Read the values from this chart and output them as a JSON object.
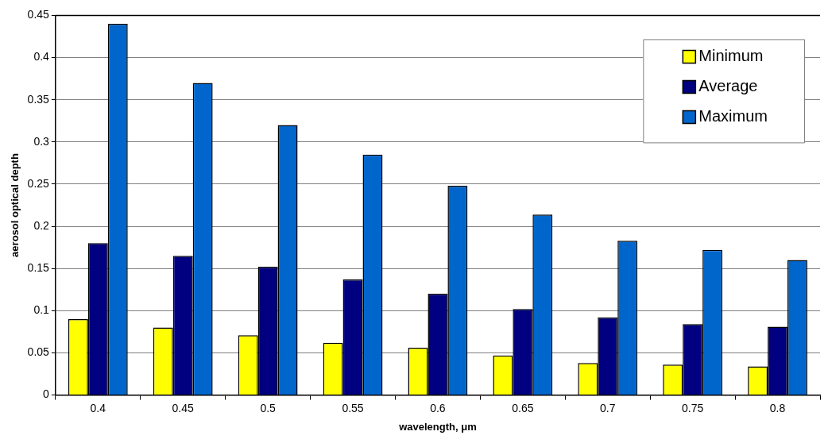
{
  "chart_data": {
    "type": "bar",
    "xlabel": "wavelength, μm",
    "ylabel": "aerosol optical depth",
    "categories": [
      "0.4",
      "0.45",
      "0.5",
      "0.55",
      "0.6",
      "0.65",
      "0.7",
      "0.75",
      "0.8"
    ],
    "series": [
      {
        "name": "Minimum",
        "color": "#ffff00",
        "values": [
          0.09,
          0.08,
          0.071,
          0.062,
          0.056,
          0.047,
          0.038,
          0.036,
          0.034
        ]
      },
      {
        "name": "Average",
        "color": "#000080",
        "values": [
          0.18,
          0.165,
          0.152,
          0.137,
          0.12,
          0.102,
          0.092,
          0.084,
          0.081
        ]
      },
      {
        "name": "Maximum",
        "color": "#0066cc",
        "values": [
          0.44,
          0.37,
          0.32,
          0.285,
          0.248,
          0.214,
          0.183,
          0.172,
          0.16
        ]
      }
    ],
    "ylim": [
      0,
      0.45
    ],
    "yticks": [
      0,
      0.05,
      0.1,
      0.15,
      0.2,
      0.25,
      0.3,
      0.35,
      0.4,
      0.45
    ],
    "grid": "y",
    "legend": "top right"
  }
}
